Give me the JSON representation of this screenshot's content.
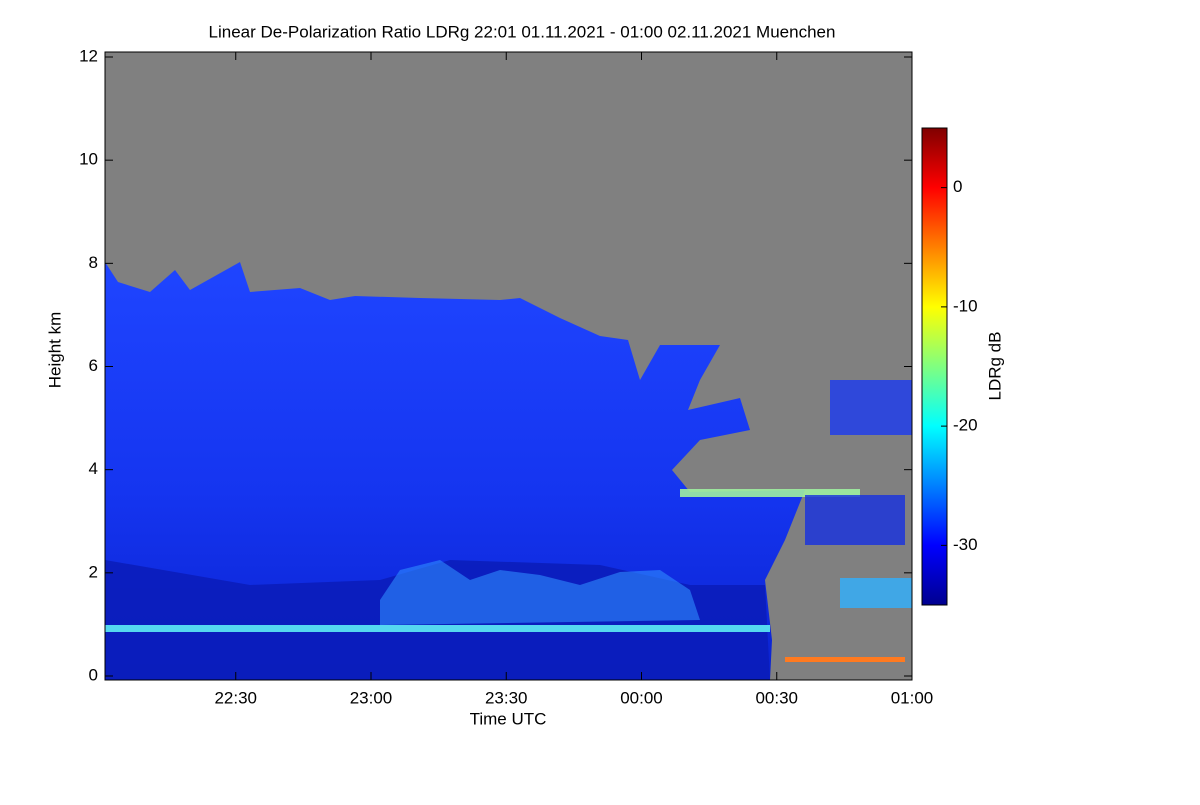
{
  "chart_data": {
    "type": "heatmap",
    "title": "Linear De-Polarization Ratio LDRg   22:01 01.11.2021 - 01:00 02.11.2021 Muenchen",
    "x_label": "Time UTC",
    "y_label": "Height km",
    "colorbar_label": "LDRg dB",
    "xlim": [
      1,
      180
    ],
    "xticks": [
      {
        "value": 30,
        "label": "22:30"
      },
      {
        "value": 60,
        "label": "23:00"
      },
      {
        "value": 90,
        "label": "23:30"
      },
      {
        "value": 120,
        "label": "00:00"
      },
      {
        "value": 150,
        "label": "00:30"
      },
      {
        "value": 180,
        "label": "01:00"
      }
    ],
    "ylim": [
      0,
      12
    ],
    "yticks": [
      0,
      2,
      4,
      6,
      8,
      10,
      12
    ],
    "clim": [
      -35,
      5
    ],
    "cticks": [
      -30,
      -20,
      -10,
      0
    ],
    "colormap": [
      "#00008f",
      "#0000ff",
      "#0080ff",
      "#00ffff",
      "#80ff80",
      "#ffff00",
      "#ff8000",
      "#ff0000",
      "#800000"
    ],
    "missing_color": "#808080"
  }
}
